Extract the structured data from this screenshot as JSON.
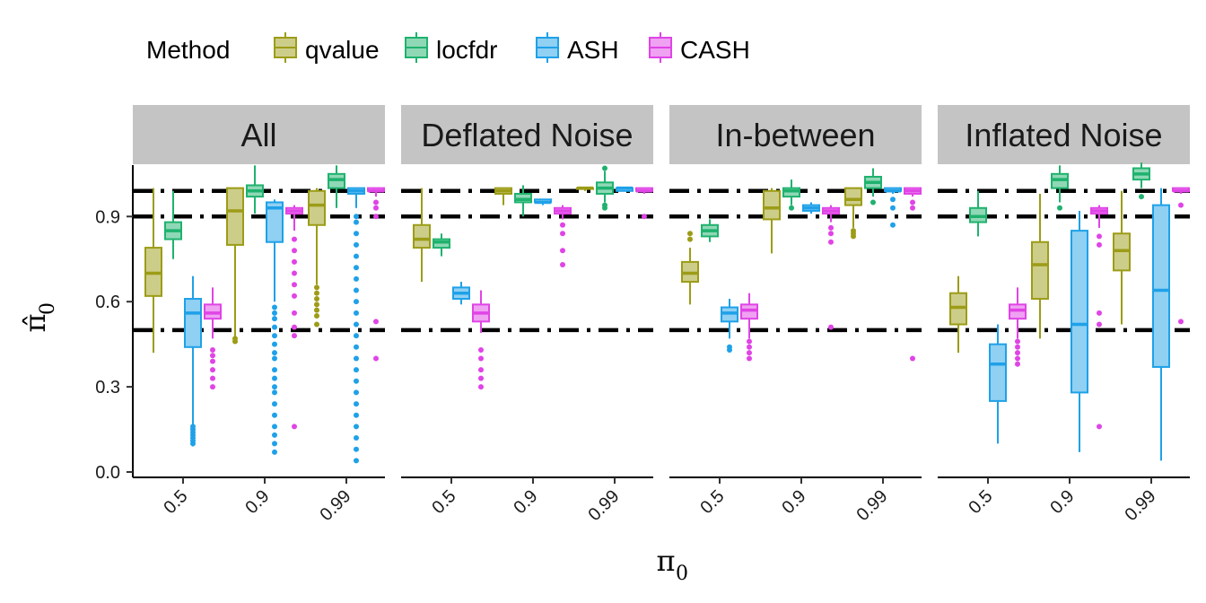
{
  "chart_data": {
    "type": "boxplot",
    "xlabel": "π",
    "xlabel_sub": "0",
    "ylabel": "π̂",
    "ylabel_sub": "0",
    "legend": {
      "title": "Method",
      "position": "top-left"
    },
    "ylim": [
      0,
      1.1
    ],
    "y_ticks": [
      "0.0",
      "0.3",
      "0.6",
      "0.9"
    ],
    "y_tick_values": [
      0,
      0.3,
      0.6,
      0.9
    ],
    "categories": [
      "0.5",
      "0.9",
      "0.99"
    ],
    "reference_lines": [
      0.5,
      0.9,
      0.99
    ],
    "reference_style": "dashed, black",
    "grid": false,
    "series": [
      {
        "name": "qvalue",
        "color": "#9C9C17",
        "fill": "#CDCD8A"
      },
      {
        "name": "locfdr",
        "color": "#1FB26E",
        "fill": "#8FD8B6"
      },
      {
        "name": "ASH",
        "color": "#1FA1E8",
        "fill": "#8FD0F3"
      },
      {
        "name": "CASH",
        "color": "#E044E6",
        "fill": "#EFA1F2"
      }
    ],
    "panels": [
      {
        "name": "All",
        "boxes": [
          [
            {
              "min": 0.42,
              "q1": 0.62,
              "med": 0.7,
              "q3": 0.79,
              "max": 1.0
            },
            {
              "min": 0.47,
              "q1": 0.8,
              "med": 0.92,
              "q3": 1.0,
              "max": 1.0,
              "outliers": [
                0.46,
                0.47
              ]
            },
            {
              "min": 0.66,
              "q1": 0.87,
              "med": 0.94,
              "q3": 0.99,
              "max": 1.0,
              "outliers": [
                0.52,
                0.55,
                0.57,
                0.59,
                0.61,
                0.63,
                0.65
              ]
            }
          ],
          [
            {
              "min": 0.75,
              "q1": 0.82,
              "med": 0.85,
              "q3": 0.88,
              "max": 0.99
            },
            {
              "min": 0.91,
              "q1": 0.97,
              "med": 0.99,
              "q3": 1.01,
              "max": 1.08
            },
            {
              "min": 0.93,
              "q1": 1.0,
              "med": 1.03,
              "q3": 1.05,
              "max": 1.08
            }
          ],
          [
            {
              "min": 0.09,
              "q1": 0.44,
              "med": 0.56,
              "q3": 0.61,
              "max": 0.69,
              "outliers": [
                0.1,
                0.11,
                0.12,
                0.13,
                0.14,
                0.15,
                0.16
              ]
            },
            {
              "min": 0.6,
              "q1": 0.81,
              "med": 0.93,
              "q3": 0.95,
              "max": 0.96,
              "outliers": [
                0.07,
                0.1,
                0.13,
                0.16,
                0.2,
                0.24,
                0.28,
                0.3,
                0.33,
                0.36,
                0.4,
                0.42,
                0.45,
                0.48,
                0.51,
                0.54,
                0.56,
                0.58
              ]
            },
            {
              "min": 0.93,
              "q1": 0.98,
              "med": 0.99,
              "q3": 1.0,
              "max": 1.0,
              "outliers": [
                0.04,
                0.08,
                0.12,
                0.16,
                0.2,
                0.24,
                0.28,
                0.32,
                0.36,
                0.4,
                0.44,
                0.48,
                0.52,
                0.56,
                0.6,
                0.64,
                0.68,
                0.72,
                0.76,
                0.8,
                0.84,
                0.88,
                0.9
              ]
            }
          ],
          [
            {
              "min": 0.47,
              "q1": 0.54,
              "med": 0.56,
              "q3": 0.59,
              "max": 0.65,
              "outliers": [
                0.3,
                0.33,
                0.36,
                0.39,
                0.41,
                0.43
              ]
            },
            {
              "min": 0.85,
              "q1": 0.91,
              "med": 0.92,
              "q3": 0.93,
              "max": 0.94,
              "outliers": [
                0.16,
                0.48,
                0.51,
                0.56,
                0.62,
                0.66,
                0.7,
                0.74,
                0.78,
                0.82
              ]
            },
            {
              "min": 0.97,
              "q1": 0.99,
              "med": 0.99,
              "q3": 1.0,
              "max": 1.0,
              "outliers": [
                0.4,
                0.53,
                0.9,
                0.93,
                0.95
              ]
            }
          ]
        ]
      },
      {
        "name": "Deflated Noise",
        "boxes": [
          [
            {
              "min": 0.67,
              "q1": 0.79,
              "med": 0.82,
              "q3": 0.87,
              "max": 1.0
            },
            {
              "min": 0.94,
              "q1": 0.98,
              "med": 0.99,
              "q3": 1.0,
              "max": 1.0
            },
            {
              "min": 0.99,
              "q1": 1.0,
              "med": 1.0,
              "q3": 1.0,
              "max": 1.0
            }
          ],
          [
            {
              "min": 0.76,
              "q1": 0.79,
              "med": 0.81,
              "q3": 0.82,
              "max": 0.84
            },
            {
              "min": 0.9,
              "q1": 0.95,
              "med": 0.96,
              "q3": 0.98,
              "max": 1.01
            },
            {
              "min": 0.95,
              "q1": 0.98,
              "med": 1.0,
              "q3": 1.02,
              "max": 1.06,
              "outliers": [
                0.93,
                0.94,
                1.07
              ]
            }
          ],
          [
            {
              "min": 0.59,
              "q1": 0.61,
              "med": 0.63,
              "q3": 0.65,
              "max": 0.67
            },
            {
              "min": 0.94,
              "q1": 0.95,
              "med": 0.95,
              "q3": 0.96,
              "max": 0.96
            },
            {
              "min": 0.99,
              "q1": 0.99,
              "med": 1.0,
              "q3": 1.0,
              "max": 1.0
            }
          ],
          [
            {
              "min": 0.49,
              "q1": 0.53,
              "med": 0.56,
              "q3": 0.59,
              "max": 0.64,
              "outliers": [
                0.3,
                0.33,
                0.36,
                0.4,
                0.43
              ]
            },
            {
              "min": 0.89,
              "q1": 0.91,
              "med": 0.92,
              "q3": 0.93,
              "max": 0.94,
              "outliers": [
                0.73,
                0.78,
                0.84,
                0.87
              ]
            },
            {
              "min": 0.98,
              "q1": 0.99,
              "med": 0.99,
              "q3": 1.0,
              "max": 1.0,
              "outliers": [
                0.9
              ]
            }
          ]
        ]
      },
      {
        "name": "In-between",
        "boxes": [
          [
            {
              "min": 0.59,
              "q1": 0.67,
              "med": 0.7,
              "q3": 0.74,
              "max": 0.79,
              "outliers": [
                0.82,
                0.84
              ]
            },
            {
              "min": 0.77,
              "q1": 0.89,
              "med": 0.93,
              "q3": 0.99,
              "max": 1.0
            },
            {
              "min": 0.86,
              "q1": 0.94,
              "med": 0.96,
              "q3": 1.0,
              "max": 1.0,
              "outliers": [
                0.83,
                0.84,
                0.85
              ]
            }
          ],
          [
            {
              "min": 0.81,
              "q1": 0.83,
              "med": 0.85,
              "q3": 0.87,
              "max": 0.89
            },
            {
              "min": 0.94,
              "q1": 0.97,
              "med": 0.99,
              "q3": 1.0,
              "max": 1.03,
              "outliers": [
                0.93
              ]
            },
            {
              "min": 0.97,
              "q1": 1.0,
              "med": 1.02,
              "q3": 1.04,
              "max": 1.07,
              "outliers": [
                0.95
              ]
            }
          ],
          [
            {
              "min": 0.47,
              "q1": 0.53,
              "med": 0.56,
              "q3": 0.58,
              "max": 0.61,
              "outliers": [
                0.43,
                0.44
              ]
            },
            {
              "min": 0.91,
              "q1": 0.92,
              "med": 0.93,
              "q3": 0.94,
              "max": 0.95
            },
            {
              "min": 0.98,
              "q1": 0.99,
              "med": 0.99,
              "q3": 1.0,
              "max": 1.0,
              "outliers": [
                0.87,
                0.93,
                0.96
              ]
            }
          ],
          [
            {
              "min": 0.47,
              "q1": 0.54,
              "med": 0.57,
              "q3": 0.59,
              "max": 0.63,
              "outliers": [
                0.4,
                0.42,
                0.44,
                0.46
              ]
            },
            {
              "min": 0.88,
              "q1": 0.91,
              "med": 0.92,
              "q3": 0.93,
              "max": 0.94,
              "outliers": [
                0.51,
                0.81,
                0.84,
                0.86
              ]
            },
            {
              "min": 0.97,
              "q1": 0.98,
              "med": 0.99,
              "q3": 1.0,
              "max": 1.0,
              "outliers": [
                0.4,
                0.93,
                0.95
              ]
            }
          ]
        ]
      },
      {
        "name": "Inflated Noise",
        "boxes": [
          [
            {
              "min": 0.42,
              "q1": 0.52,
              "med": 0.58,
              "q3": 0.63,
              "max": 0.69
            },
            {
              "min": 0.47,
              "q1": 0.61,
              "med": 0.73,
              "q3": 0.81,
              "max": 0.98
            },
            {
              "min": 0.52,
              "q1": 0.71,
              "med": 0.78,
              "q3": 0.84,
              "max": 0.99
            }
          ],
          [
            {
              "min": 0.83,
              "q1": 0.88,
              "med": 0.9,
              "q3": 0.93,
              "max": 0.99
            },
            {
              "min": 0.95,
              "q1": 1.0,
              "med": 1.03,
              "q3": 1.05,
              "max": 1.08,
              "outliers": [
                0.93
              ]
            },
            {
              "min": 1.0,
              "q1": 1.03,
              "med": 1.05,
              "q3": 1.07,
              "max": 1.09,
              "outliers": [
                0.97
              ]
            }
          ],
          [
            {
              "min": 0.1,
              "q1": 0.25,
              "med": 0.38,
              "q3": 0.45,
              "max": 0.52
            },
            {
              "min": 0.07,
              "q1": 0.28,
              "med": 0.52,
              "q3": 0.85,
              "max": 0.92
            },
            {
              "min": 0.04,
              "q1": 0.37,
              "med": 0.64,
              "q3": 0.94,
              "max": 1.0
            }
          ],
          [
            {
              "min": 0.47,
              "q1": 0.54,
              "med": 0.57,
              "q3": 0.59,
              "max": 0.65,
              "outliers": [
                0.38,
                0.4,
                0.42,
                0.44,
                0.46
              ]
            },
            {
              "min": 0.86,
              "q1": 0.91,
              "med": 0.92,
              "q3": 0.93,
              "max": 0.94,
              "outliers": [
                0.16,
                0.52,
                0.56,
                0.8,
                0.83
              ]
            },
            {
              "min": 0.98,
              "q1": 0.99,
              "med": 0.99,
              "q3": 1.0,
              "max": 1.0,
              "outliers": [
                0.53,
                0.94
              ]
            }
          ]
        ]
      }
    ]
  }
}
